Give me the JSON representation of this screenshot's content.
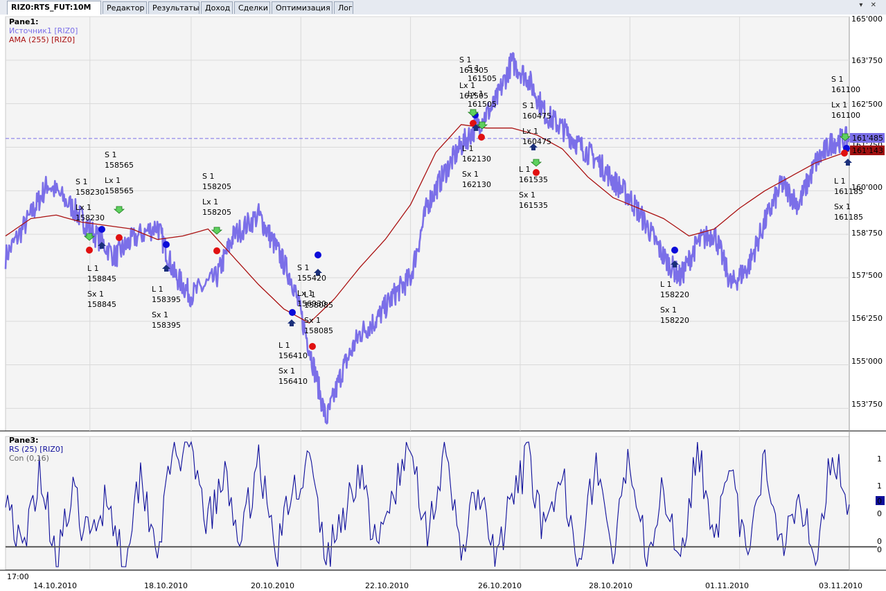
{
  "tabs": [
    {
      "label": "RIZ0:RTS_FUT:10M",
      "active": true
    },
    {
      "label": "Редактор",
      "active": false
    },
    {
      "label": "Результаты",
      "active": false
    },
    {
      "label": "Доход",
      "active": false
    },
    {
      "label": "Сделки",
      "active": false
    },
    {
      "label": "Оптимизация",
      "active": false
    },
    {
      "label": "Лог",
      "active": false
    }
  ],
  "tab_controls": "▾ ✕",
  "colors": {
    "price": "#7b6fe8",
    "ama": "#aa1111",
    "rs": "#0d0d9a",
    "con": "#555555",
    "buy": "#0b0bd9",
    "sell": "#e01010",
    "entry_arrow": "#22bb22",
    "exit_arrow": "#0d2a8a"
  },
  "pane1": {
    "title": "Pane1:",
    "legend": [
      {
        "text": "Источник1 [RIZ0]",
        "color": "#7b6fe8"
      },
      {
        "text": "AMA (255) [RIZ0]",
        "color": "#aa1111"
      }
    ],
    "price_ticks": [
      "165'000",
      "163'750",
      "162'500",
      "161'250",
      "160'000",
      "158'750",
      "157'500",
      "156'250",
      "155'000",
      "153'750"
    ],
    "last_price": "161'485",
    "ama_value": "161'143"
  },
  "pane3": {
    "title": "Pane3:",
    "legend": [
      {
        "text": "RS (25) [RIZ0]",
        "color": "#0d0d9a"
      },
      {
        "text": "Con (0,16)",
        "color": "#666666"
      }
    ],
    "ticks": [
      "1",
      "1",
      "0",
      "0",
      "0"
    ],
    "last_value": "0"
  },
  "time_axis": {
    "start": "17:00",
    "dates": [
      "14.10.2010",
      "18.10.2010",
      "20.10.2010",
      "22.10.2010",
      "26.10.2010",
      "28.10.2010",
      "01.11.2010",
      "03.11.2010"
    ]
  },
  "signals": [
    {
      "lines": [
        "S 1",
        "158230",
        "Lx 1",
        "158230"
      ]
    },
    {
      "lines": [
        "S 1",
        "158565",
        "Lx 1",
        "158565"
      ]
    },
    {
      "lines": [
        "L 1",
        "158845",
        "Sx 1",
        "158845"
      ]
    },
    {
      "lines": [
        "L 1",
        "158395",
        "Sx 1",
        "158395"
      ]
    },
    {
      "lines": [
        "S 1",
        "158205",
        "Lx 1",
        "158205"
      ]
    },
    {
      "lines": [
        "S 1",
        "155420",
        "Lx 1",
        "156930"
      ]
    },
    {
      "lines": [
        "L 1",
        "158085",
        "Sx 1",
        "158085"
      ]
    },
    {
      "lines": [
        "L 1",
        "156410",
        "Sx 1",
        "156410"
      ]
    },
    {
      "lines": [
        "S 1",
        "161505",
        "Lx 1",
        "161505"
      ]
    },
    {
      "lines": [
        "S 1",
        "161505",
        "Lx 1",
        "161505"
      ]
    },
    {
      "lines": [
        "L 1",
        "162130",
        "Sx 1",
        "162130"
      ]
    },
    {
      "lines": [
        "S 1",
        "160475",
        "Lx 1",
        "160475"
      ]
    },
    {
      "lines": [
        "L 1",
        "161535",
        "Sx 1",
        "161535"
      ]
    },
    {
      "lines": [
        "L 1",
        "158220",
        "Sx 1",
        "158220"
      ]
    },
    {
      "lines": [
        "S 1",
        "161100",
        "Lx 1",
        "161100"
      ]
    },
    {
      "lines": [
        "L 1",
        "161185",
        "Sx 1",
        "161185"
      ]
    }
  ],
  "chart_data": [
    {
      "type": "line",
      "title": "Pane1:",
      "ylim": [
        153100,
        165000
      ],
      "series": [
        {
          "name": "Источник1 [RIZ0]",
          "x": [
            0,
            3,
            5,
            8,
            10,
            13,
            15,
            18,
            20,
            22,
            25,
            27,
            30,
            32,
            34,
            36,
            38,
            40,
            42,
            44,
            46,
            48,
            50,
            52,
            54,
            56,
            58,
            60,
            62,
            64,
            66,
            68,
            70,
            72,
            74,
            76,
            78,
            80,
            82,
            84,
            86,
            88,
            90,
            92,
            94,
            96,
            98,
            100
          ],
          "values": [
            158100,
            159300,
            160200,
            159500,
            158900,
            158100,
            158600,
            159000,
            157600,
            157000,
            157500,
            158700,
            159300,
            158400,
            157400,
            155500,
            153400,
            154900,
            155900,
            156300,
            157000,
            157500,
            159600,
            160500,
            161300,
            161900,
            162500,
            163700,
            163200,
            162200,
            161800,
            161300,
            160900,
            160300,
            159800,
            159000,
            158100,
            157500,
            158500,
            158800,
            157300,
            157800,
            159100,
            160200,
            159600,
            160800,
            161400,
            161500
          ]
        },
        {
          "name": "AMA (255) [RIZ0]",
          "x": [
            0,
            3,
            6,
            9,
            12,
            15,
            18,
            21,
            24,
            27,
            30,
            33,
            36,
            39,
            42,
            45,
            48,
            51,
            54,
            57,
            60,
            63,
            66,
            69,
            72,
            75,
            78,
            81,
            84,
            87,
            90,
            93,
            96,
            100
          ],
          "values": [
            158700,
            159200,
            159300,
            159100,
            159000,
            158900,
            158600,
            158700,
            158900,
            158100,
            157300,
            156600,
            156200,
            156900,
            157800,
            158600,
            159600,
            161100,
            161900,
            161800,
            161800,
            161600,
            161200,
            160400,
            159800,
            159500,
            159200,
            158700,
            158900,
            159500,
            160000,
            160400,
            160800,
            161143
          ]
        }
      ]
    },
    {
      "type": "line",
      "title": "Pane3:",
      "ylim": [
        0,
        1
      ],
      "series": [
        {
          "name": "RS (25) [RIZ0]",
          "x": [
            0,
            2,
            4,
            6,
            8,
            10,
            12,
            14,
            16,
            18,
            20,
            22,
            24,
            26,
            28,
            30,
            32,
            34,
            36,
            38,
            40,
            42,
            44,
            46,
            48,
            50,
            52,
            54,
            56,
            58,
            60,
            62,
            64,
            66,
            68,
            70,
            72,
            74,
            76,
            78,
            80,
            82,
            84,
            86,
            88,
            90,
            92,
            94,
            96,
            98,
            100
          ],
          "values": [
            0.65,
            0.05,
            0.8,
            0.1,
            0.55,
            0.2,
            0.6,
            0.05,
            0.75,
            0.15,
            0.95,
            0.85,
            0.35,
            0.7,
            0.2,
            0.9,
            0.1,
            0.6,
            0.85,
            0.05,
            0.4,
            0.8,
            0.1,
            0.6,
            0.95,
            0.3,
            0.85,
            0.15,
            0.6,
            0.05,
            0.5,
            0.9,
            0.2,
            0.7,
            0.1,
            0.85,
            0.05,
            0.9,
            0.15,
            0.6,
            0.1,
            0.95,
            0.3,
            0.7,
            0.05,
            0.85,
            0.2,
            0.6,
            0.1,
            0.95,
            0.5
          ]
        },
        {
          "name": "Con (0,16)",
          "x": [
            0,
            100
          ],
          "values": [
            0.16,
            0.16
          ]
        }
      ]
    }
  ]
}
